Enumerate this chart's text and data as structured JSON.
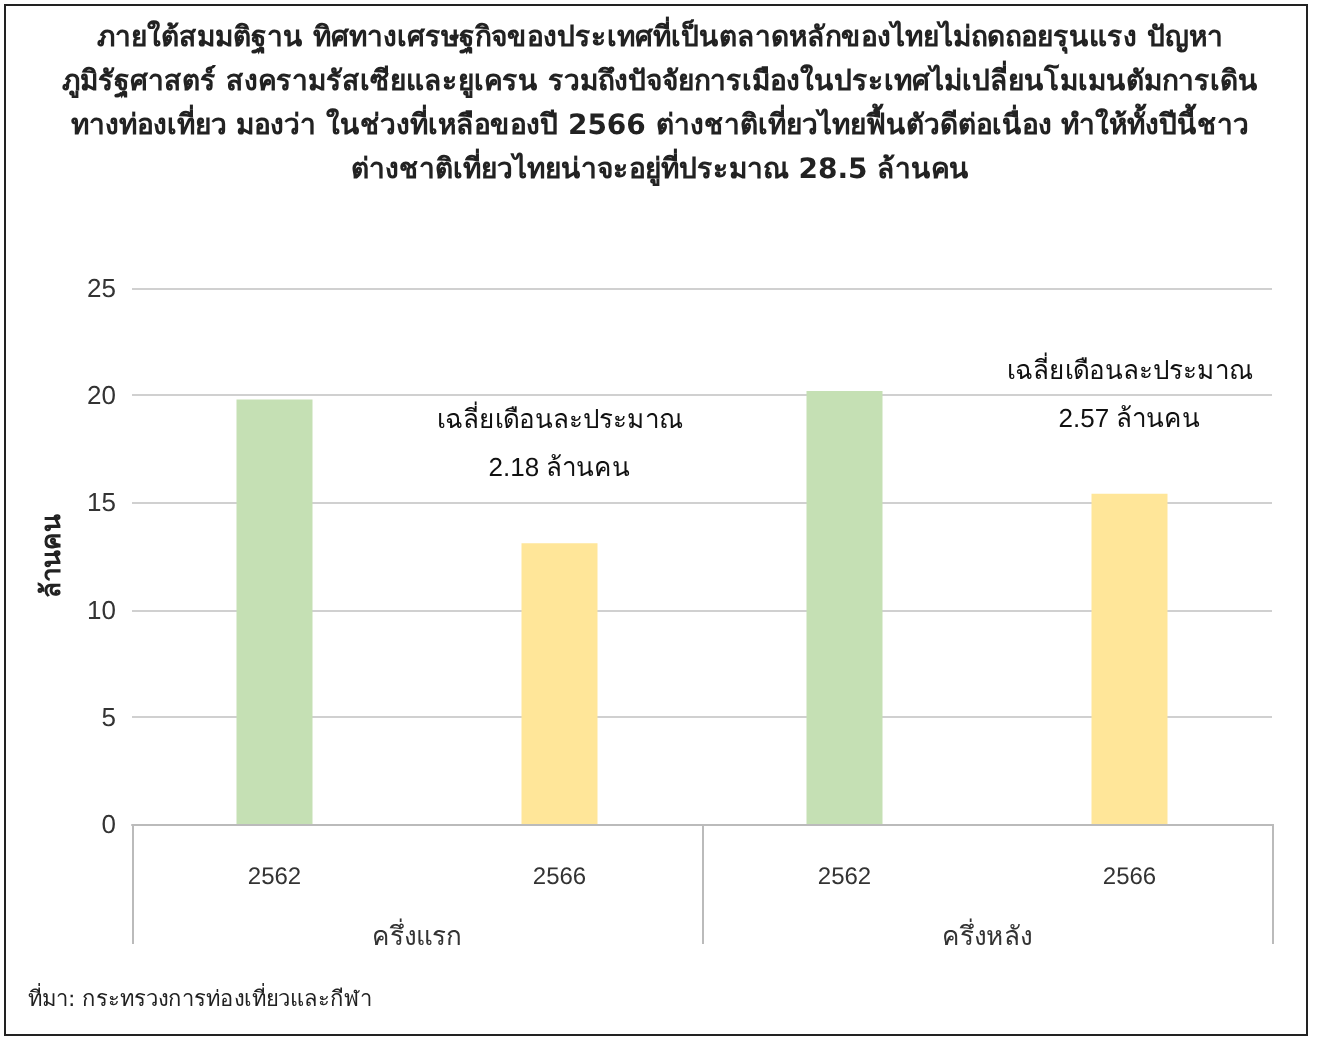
{
  "chart_data": {
    "type": "bar",
    "title": "ภายใต้สมมติฐาน ทิศทางเศรษฐกิจของประเทศที่เป็นตลาดหลักของไทยไม่ถดถอยรุนแรง ปัญหาภูมิรัฐศาสตร์ สงครามรัสเซียและยูเครน รวมถึงปัจจัยการเมืองในประเทศไม่เปลี่ยนโมเมนตัมการเดินทางท่องเที่ยว มองว่า ในช่วงที่เหลือของปี 2566 ต่างชาติเที่ยวไทยฟื้นตัวดีต่อเนื่อง ทำให้ทั้งปีนี้ชาวต่างชาติเที่ยวไทยน่าจะอยู่ที่ประมาณ 28.5 ล้านคน",
    "ylabel": "ล้านคน",
    "categories": [
      "2562",
      "2566",
      "2562",
      "2566"
    ],
    "values": [
      19.8,
      13.1,
      20.2,
      15.4
    ],
    "colors": [
      "#c5e0b4",
      "#ffe699",
      "#c5e0b4",
      "#ffe699"
    ],
    "ylim": [
      0,
      25
    ],
    "yticks": [
      0,
      5,
      10,
      15,
      20,
      25
    ],
    "grid": "y",
    "annotations": [
      "ครึ่งแรก",
      "ครึ่งหลัง",
      "เฉลี่ยเดือนละประมาณ\n2.18 ล้านคน",
      "เฉลี่ยเดือนละประมาณ\n2.57 ล้านคน",
      "ที่มา: กระทรวงการท่องเที่ยวและกีฬา"
    ]
  }
}
